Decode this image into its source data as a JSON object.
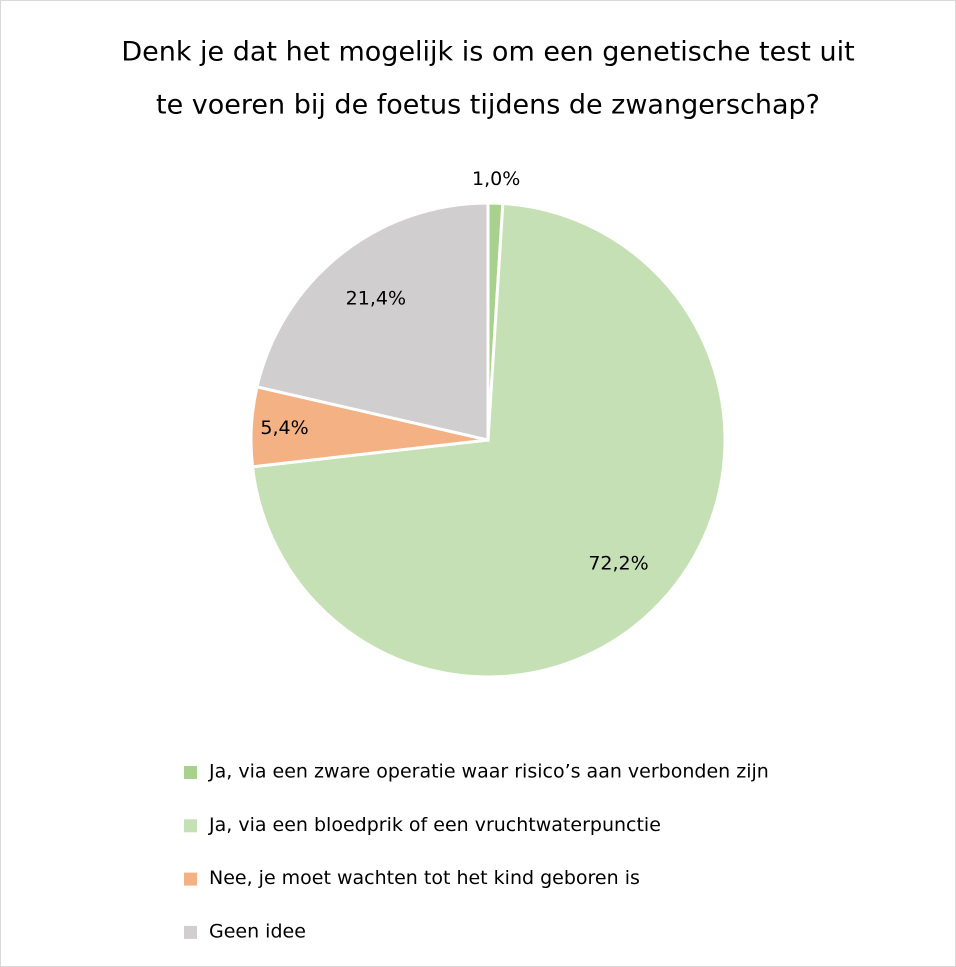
{
  "chart_data": {
    "type": "pie",
    "title": [
      "Denk je dat het mogelijk is om een genetische test uit",
      "te voeren bij de foetus tijdens de zwangerschap?"
    ],
    "categories": [
      "Ja, via een zware operatie waar risico’s aan verbonden zijn",
      "Ja, via een bloedprik of een vruchtwaterpunctie",
      "Nee, je moet wachten tot het kind geboren is",
      "Geen idee"
    ],
    "values": [
      1.0,
      72.2,
      5.4,
      21.4
    ],
    "value_labels": [
      "1,0%",
      "72,2%",
      "5,4%",
      "21,4%"
    ],
    "colors": [
      "#a9d18e",
      "#c5e0b4",
      "#f4b183",
      "#d0cece"
    ],
    "legend": "bottom"
  }
}
